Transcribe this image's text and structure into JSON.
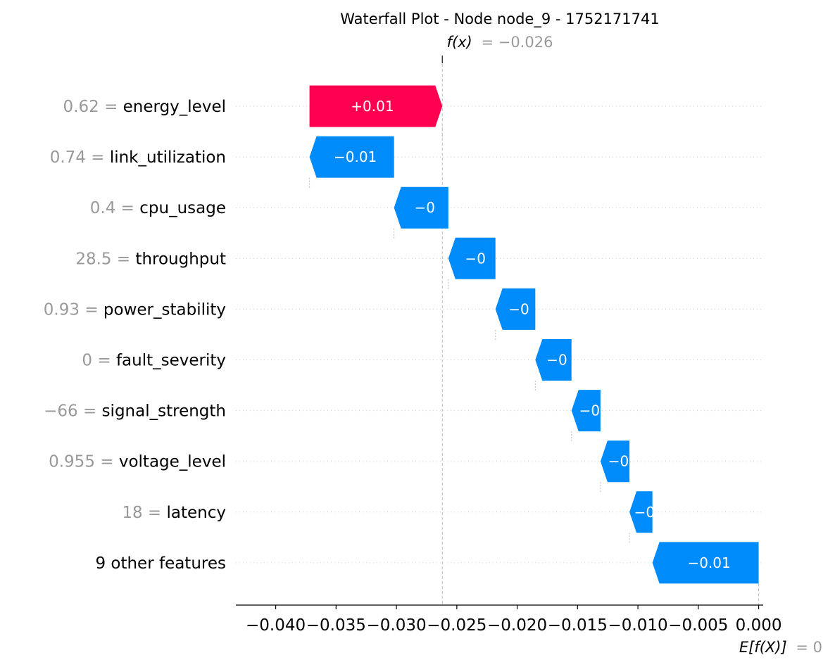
{
  "chart_data": {
    "type": "waterfall",
    "title": "Waterfall Plot - Node node_9 - 1752171741",
    "fx_label": "f(x)",
    "fx_value_label": "= −0.026",
    "fx": -0.0262,
    "base_label": "E[f(X)]",
    "base_value_label": "= 0",
    "base_value": 0.0,
    "xlim": [
      -0.0433,
      0.0002
    ],
    "xticks": [
      -0.04,
      -0.035,
      -0.03,
      -0.025,
      -0.02,
      -0.015,
      -0.01,
      -0.005,
      0.0
    ],
    "xtick_labels": [
      "−0.040",
      "−0.035",
      "−0.030",
      "−0.025",
      "−0.020",
      "−0.015",
      "−0.010",
      "−0.005",
      "0.000"
    ],
    "positive_color": "#ff0051",
    "negative_color": "#008bfb",
    "features": [
      {
        "value_text": "0.62 =",
        "name": "energy_level",
        "start": -0.0372,
        "end": -0.0262,
        "label": "+0.01"
      },
      {
        "value_text": "0.74 =",
        "name": "link_utilization",
        "start": -0.0302,
        "end": -0.0372,
        "label": "−0.01"
      },
      {
        "value_text": "0.4 =",
        "name": "cpu_usage",
        "start": -0.0257,
        "end": -0.0302,
        "label": "−0"
      },
      {
        "value_text": "28.5 =",
        "name": "throughput",
        "start": -0.0218,
        "end": -0.0257,
        "label": "−0"
      },
      {
        "value_text": "0.93 =",
        "name": "power_stability",
        "start": -0.0185,
        "end": -0.0218,
        "label": "−0"
      },
      {
        "value_text": "0 =",
        "name": "fault_severity",
        "start": -0.0155,
        "end": -0.0185,
        "label": "−0"
      },
      {
        "value_text": "−66 =",
        "name": "signal_strength",
        "start": -0.0131,
        "end": -0.0155,
        "label": "−0"
      },
      {
        "value_text": "0.955 =",
        "name": "voltage_level",
        "start": -0.0107,
        "end": -0.0131,
        "label": "−0"
      },
      {
        "value_text": "18 =",
        "name": "latency",
        "start": -0.0088,
        "end": -0.0107,
        "label": "−0"
      },
      {
        "value_text": "",
        "name": "9 other features",
        "start": 0.0,
        "end": -0.0088,
        "label": "−0.01"
      }
    ]
  }
}
